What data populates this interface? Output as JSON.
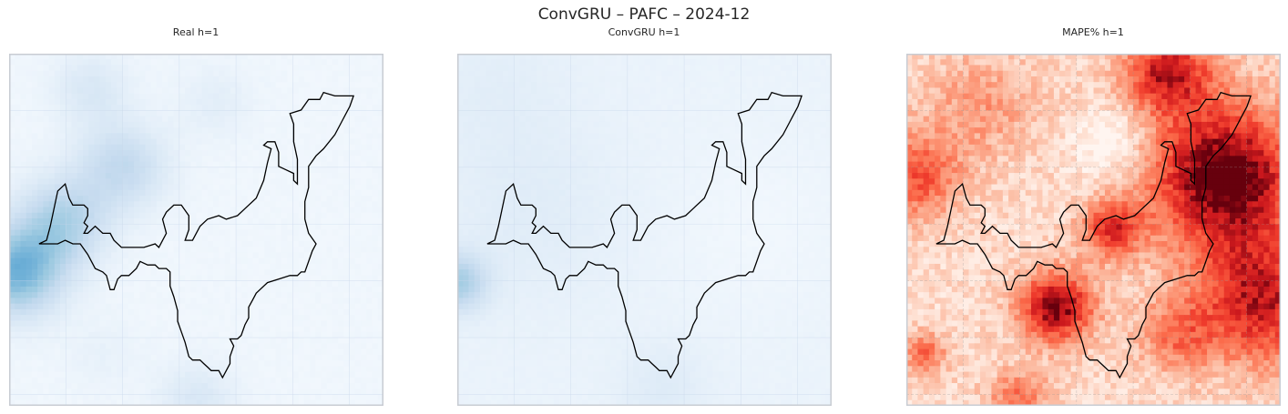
{
  "figure": {
    "suptitle": "ConvGRU – PAFC – 2024-12"
  },
  "panels": [
    {
      "key": "real",
      "title": "Real h=1"
    },
    {
      "key": "pred",
      "title": "ConvGRU h=1"
    },
    {
      "key": "mape",
      "title": "MAPE% h=1"
    }
  ],
  "chart_data": [
    {
      "type": "heatmap",
      "title": "Real h=1",
      "colormap": "Blues",
      "grid": true,
      "colorbar": false,
      "axis_ticks_shown": false,
      "overlay": "region boundary outline (black)"
    },
    {
      "type": "heatmap",
      "title": "ConvGRU h=1",
      "colormap": "Blues",
      "grid": true,
      "colorbar": false,
      "axis_ticks_shown": false,
      "overlay": "region boundary outline (black)"
    },
    {
      "type": "heatmap",
      "title": "MAPE% h=1",
      "colormap": "Reds",
      "grid": true,
      "colorbar": false,
      "axis_ticks_shown": false,
      "overlay": "region boundary outline (black)"
    }
  ],
  "colors": {
    "frame": "#c8ccd3",
    "outline": "#000000",
    "grid": "#dfe5ee"
  }
}
